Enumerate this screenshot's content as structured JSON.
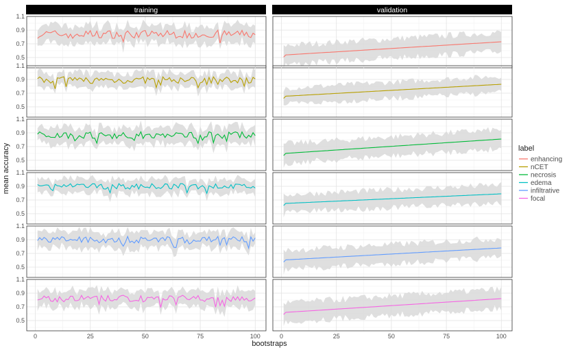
{
  "chart_data": {
    "type": "line",
    "facet_columns": [
      "training",
      "validation"
    ],
    "facet_rows": [
      "enhancing",
      "nCET",
      "necrosis",
      "edema",
      "infiltrative",
      "focal"
    ],
    "xlabel": "bootstraps",
    "ylabel": "mean accuracy",
    "xlim": [
      1,
      100
    ],
    "ylim": [
      0.35,
      1.1
    ],
    "x_ticks": [
      0,
      25,
      50,
      75,
      100
    ],
    "y_ticks": [
      0.5,
      0.7,
      0.9,
      1.1
    ],
    "y_tick_labels": [
      "0.5",
      "0.7",
      "0.9",
      "1.1"
    ],
    "grid": true,
    "legend": {
      "title": "label",
      "position": "right",
      "entries": [
        {
          "name": "enhancing",
          "color": "#F8766D"
        },
        {
          "name": "nCET",
          "color": "#B79F00"
        },
        {
          "name": "necrosis",
          "color": "#00BA38"
        },
        {
          "name": "edema",
          "color": "#00BFC4"
        },
        {
          "name": "infiltrative",
          "color": "#619CFF"
        },
        {
          "name": "focal",
          "color": "#F564E3"
        }
      ]
    },
    "ribbon_color": "#d9d9d9",
    "series": [
      {
        "name": "enhancing",
        "panel": "training",
        "summary": {
          "mean": 0.84,
          "spread": 0.06,
          "band": 0.12
        }
      },
      {
        "name": "nCET",
        "panel": "training",
        "summary": {
          "mean": 0.89,
          "spread": 0.05,
          "band": 0.1
        }
      },
      {
        "name": "necrosis",
        "panel": "training",
        "summary": {
          "mean": 0.87,
          "spread": 0.05,
          "band": 0.12
        }
      },
      {
        "name": "edema",
        "panel": "training",
        "summary": {
          "mean": 0.9,
          "spread": 0.04,
          "band": 0.1
        }
      },
      {
        "name": "infiltrative",
        "panel": "training",
        "summary": {
          "mean": 0.9,
          "spread": 0.05,
          "band": 0.11
        }
      },
      {
        "name": "focal",
        "panel": "training",
        "summary": {
          "mean": 0.82,
          "spread": 0.05,
          "band": 0.12
        }
      },
      {
        "name": "enhancing",
        "panel": "validation",
        "summary": {
          "start": 0.51,
          "end": 0.73,
          "band": 0.14
        }
      },
      {
        "name": "nCET",
        "panel": "validation",
        "summary": {
          "start": 0.63,
          "end": 0.83,
          "band": 0.12
        }
      },
      {
        "name": "necrosis",
        "panel": "validation",
        "summary": {
          "start": 0.57,
          "end": 0.81,
          "band": 0.14
        }
      },
      {
        "name": "edema",
        "panel": "validation",
        "summary": {
          "start": 0.63,
          "end": 0.79,
          "band": 0.13
        }
      },
      {
        "name": "infiltrative",
        "panel": "validation",
        "summary": {
          "start": 0.58,
          "end": 0.78,
          "band": 0.14
        }
      },
      {
        "name": "focal",
        "panel": "validation",
        "summary": {
          "start": 0.59,
          "end": 0.82,
          "band": 0.14
        }
      }
    ]
  }
}
